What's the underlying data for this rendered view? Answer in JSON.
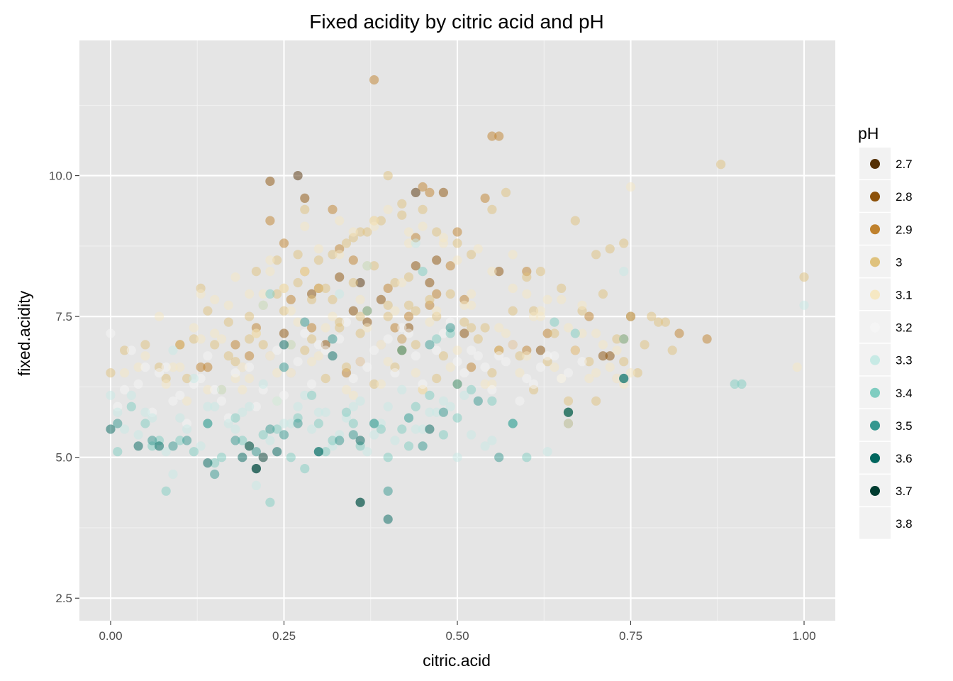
{
  "chart_data": {
    "type": "scatter",
    "title": "Fixed acidity by citric acid and pH",
    "xlabel": "citric.acid",
    "ylabel": "fixed.acidity",
    "xlim": [
      -0.045,
      1.045
    ],
    "ylim": [
      2.1,
      12.4
    ],
    "x_ticks": [
      0.0,
      0.25,
      0.5,
      0.75,
      1.0
    ],
    "x_tick_labels": [
      "0.00",
      "0.25",
      "0.50",
      "0.75",
      "1.00"
    ],
    "y_ticks": [
      2.5,
      5.0,
      7.5,
      10.0
    ],
    "y_tick_labels": [
      "2.5",
      "5.0",
      "7.5",
      "10.0"
    ],
    "grid": true,
    "legend": {
      "title": "pH",
      "position": "right",
      "entries": [
        {
          "label": "2.7",
          "color": "#543005"
        },
        {
          "label": "2.8",
          "color": "#8c510a"
        },
        {
          "label": "2.9",
          "color": "#bf812d"
        },
        {
          "label": "3",
          "color": "#dfc27d"
        },
        {
          "label": "3.1",
          "color": "#f6e8c3"
        },
        {
          "label": "3.2",
          "color": "#f5f5f5"
        },
        {
          "label": "3.3",
          "color": "#c7eae5"
        },
        {
          "label": "3.4",
          "color": "#80cdc1"
        },
        {
          "label": "3.5",
          "color": "#35978f"
        },
        {
          "label": "3.6",
          "color": "#01665e"
        },
        {
          "label": "3.7",
          "color": "#003c30"
        },
        {
          "label": "3.8",
          "color": "#e5e5e5"
        }
      ]
    },
    "point_alpha": 0.5,
    "series": [
      {
        "name": "2.7",
        "x": [
          0.27,
          0.44,
          0.36
        ],
        "y": [
          10.0,
          9.7,
          8.1
        ]
      },
      {
        "name": "2.8",
        "x": [
          0.23,
          0.28,
          0.33,
          0.46,
          0.47,
          0.48,
          0.44,
          0.39,
          0.43,
          0.35,
          0.56,
          0.62,
          0.71,
          0.75,
          0.72,
          0.66,
          0.25,
          0.31,
          0.42,
          0.29,
          0.51,
          0.37
        ],
        "y": [
          9.9,
          9.6,
          8.2,
          8.1,
          8.5,
          9.7,
          8.4,
          7.8,
          7.3,
          7.6,
          8.3,
          6.9,
          6.8,
          7.5,
          6.8,
          5.8,
          7.2,
          7.0,
          7.1,
          7.9,
          7.2,
          7.4
        ]
      },
      {
        "name": "2.9",
        "x": [
          0.23,
          0.25,
          0.32,
          0.38,
          0.44,
          0.45,
          0.46,
          0.5,
          0.54,
          0.55,
          0.56,
          0.6,
          0.63,
          0.67,
          0.69,
          0.82,
          0.86,
          0.28,
          0.3,
          0.33,
          0.35,
          0.37,
          0.4,
          0.41,
          0.43,
          0.47,
          0.49,
          0.51,
          0.26,
          0.29,
          0.18,
          0.2,
          0.13,
          0.14,
          0.1,
          0.56,
          0.58,
          0.6,
          0.66,
          0.74,
          0.21,
          0.34,
          0.42,
          0.46,
          0.52,
          0.36
        ],
        "y": [
          9.2,
          8.8,
          9.4,
          11.7,
          8.9,
          9.8,
          9.7,
          9.0,
          9.6,
          10.7,
          10.7,
          8.3,
          7.2,
          6.9,
          7.5,
          7.2,
          7.1,
          8.3,
          8.0,
          8.7,
          8.5,
          7.6,
          8.0,
          7.3,
          7.5,
          7.9,
          8.4,
          7.8,
          7.8,
          7.3,
          7.0,
          6.8,
          6.6,
          6.6,
          7.0,
          6.9,
          7.0,
          6.9,
          5.6,
          7.1,
          7.3,
          6.5,
          6.9,
          7.7,
          6.6,
          6.7
        ]
      },
      {
        "name": "3",
        "x": [
          0.0,
          0.02,
          0.05,
          0.07,
          0.1,
          0.12,
          0.15,
          0.17,
          0.2,
          0.22,
          0.25,
          0.27,
          0.3,
          0.32,
          0.35,
          0.37,
          0.4,
          0.42,
          0.45,
          0.47,
          0.5,
          0.52,
          0.55,
          0.57,
          0.6,
          0.62,
          0.65,
          0.67,
          0.7,
          0.72,
          0.74,
          0.78,
          0.8,
          0.88,
          1.0,
          0.2,
          0.24,
          0.28,
          0.31,
          0.34,
          0.38,
          0.41,
          0.43,
          0.46,
          0.49,
          0.51,
          0.54,
          0.58,
          0.61,
          0.64,
          0.68,
          0.71,
          0.73,
          0.75,
          0.77,
          0.79,
          0.81,
          0.66,
          0.7,
          0.76,
          0.18,
          0.22,
          0.26,
          0.29,
          0.33,
          0.36,
          0.39,
          0.42,
          0.44,
          0.48,
          0.53,
          0.56,
          0.59,
          0.63,
          0.21,
          0.24,
          0.27,
          0.3,
          0.32,
          0.35,
          0.37,
          0.4,
          0.43,
          0.19,
          0.23,
          0.26,
          0.28,
          0.31,
          0.34,
          0.38,
          0.41,
          0.45,
          0.47,
          0.5,
          0.55,
          0.61,
          0.73,
          0.74,
          0.69,
          0.16,
          0.13,
          0.11,
          0.08,
          0.14,
          0.17,
          0.21,
          0.25,
          0.29,
          0.33,
          0.36,
          0.4,
          0.44,
          0.47,
          0.52,
          0.38,
          0.28,
          0.36,
          0.39,
          0.42
        ],
        "y": [
          6.5,
          6.9,
          7.0,
          6.6,
          7.0,
          7.1,
          7.0,
          6.8,
          7.1,
          7.7,
          8.0,
          8.1,
          8.5,
          8.6,
          8.9,
          9.0,
          10.0,
          9.5,
          9.4,
          9.0,
          8.8,
          8.6,
          9.4,
          9.7,
          8.2,
          8.3,
          8.0,
          9.2,
          8.6,
          8.7,
          8.8,
          7.5,
          7.4,
          10.2,
          8.2,
          7.5,
          7.9,
          8.3,
          8.0,
          8.8,
          8.4,
          8.1,
          8.2,
          7.8,
          7.9,
          7.4,
          7.3,
          7.6,
          7.6,
          7.2,
          7.6,
          7.9,
          7.1,
          7.5,
          7.0,
          7.4,
          6.9,
          6.0,
          6.0,
          6.5,
          6.7,
          7.0,
          7.0,
          7.1,
          7.3,
          7.2,
          7.0,
          6.9,
          7.0,
          6.8,
          7.1,
          6.9,
          6.8,
          6.7,
          8.3,
          8.5,
          8.6,
          8.0,
          7.8,
          8.1,
          8.4,
          7.5,
          7.7,
          6.6,
          6.8,
          6.5,
          6.9,
          6.4,
          6.6,
          6.3,
          6.6,
          6.2,
          6.4,
          6.3,
          6.5,
          6.2,
          6.4,
          6.7,
          6.7,
          6.2,
          8.0,
          6.4,
          6.4,
          7.6,
          7.4,
          7.2,
          7.6,
          7.8,
          7.4,
          7.5,
          7.7,
          7.6,
          7.5,
          7.3,
          9.2,
          9.4,
          9.0,
          9.2,
          9.3
        ]
      },
      {
        "name": "3.1",
        "x": [
          0.02,
          0.05,
          0.08,
          0.1,
          0.13,
          0.15,
          0.18,
          0.2,
          0.23,
          0.25,
          0.28,
          0.3,
          0.33,
          0.35,
          0.38,
          0.4,
          0.43,
          0.45,
          0.48,
          0.5,
          0.53,
          0.55,
          0.58,
          0.6,
          0.63,
          0.65,
          0.68,
          0.7,
          0.73,
          0.75,
          0.99,
          0.07,
          0.12,
          0.16,
          0.21,
          0.26,
          0.31,
          0.36,
          0.41,
          0.46,
          0.51,
          0.56,
          0.61,
          0.66,
          0.71,
          0.19,
          0.24,
          0.29,
          0.34,
          0.39,
          0.44,
          0.49,
          0.54,
          0.59,
          0.64,
          0.69,
          0.74,
          0.17,
          0.22,
          0.27,
          0.32,
          0.37,
          0.42,
          0.47,
          0.52,
          0.57,
          0.62,
          0.67,
          0.72,
          0.11,
          0.14,
          0.09,
          0.04,
          0.2,
          0.3,
          0.4,
          0.5,
          0.6,
          0.7,
          0.33,
          0.38,
          0.43,
          0.48,
          0.28,
          0.23,
          0.18,
          0.13,
          0.15,
          0.24,
          0.35,
          0.45,
          0.55,
          0.65,
          0.75,
          0.42,
          0.52,
          0.58,
          0.62,
          0.68
        ],
        "y": [
          6.5,
          6.8,
          6.3,
          6.6,
          7.1,
          7.2,
          6.4,
          7.9,
          8.3,
          8.0,
          9.1,
          8.7,
          8.6,
          9.0,
          9.2,
          9.4,
          9.0,
          9.1,
          8.8,
          8.5,
          8.7,
          8.3,
          8.6,
          7.9,
          7.8,
          7.8,
          7.7,
          7.2,
          6.9,
          9.8,
          6.6,
          7.5,
          7.3,
          7.1,
          7.2,
          7.6,
          7.3,
          7.8,
          7.6,
          7.4,
          7.7,
          7.3,
          7.5,
          7.3,
          7.0,
          6.2,
          6.5,
          6.7,
          6.2,
          6.3,
          6.5,
          6.6,
          6.3,
          6.5,
          6.6,
          6.4,
          6.3,
          7.7,
          7.9,
          7.4,
          7.5,
          7.3,
          7.1,
          7.6,
          7.7,
          7.2,
          7.5,
          6.9,
          6.6,
          6.0,
          6.2,
          6.6,
          6.6,
          6.4,
          6.8,
          6.7,
          6.9,
          6.8,
          6.5,
          9.2,
          9.1,
          8.8,
          8.9,
          8.3,
          8.5,
          8.2,
          7.9,
          7.8,
          6.0,
          6.1,
          6.2,
          6.3,
          6.4,
          6.5,
          8.1,
          7.9,
          8.0,
          7.6,
          7.2
        ]
      },
      {
        "name": "3.2",
        "x": [
          0.0,
          0.02,
          0.03,
          0.05,
          0.06,
          0.08,
          0.1,
          0.12,
          0.14,
          0.16,
          0.18,
          0.2,
          0.22,
          0.24,
          0.26,
          0.28,
          0.3,
          0.32,
          0.34,
          0.36,
          0.38,
          0.4,
          0.42,
          0.44,
          0.46,
          0.48,
          0.5,
          0.52,
          0.54,
          0.56,
          0.58,
          0.6,
          0.62,
          0.64,
          0.66,
          0.68,
          0.73,
          0.01,
          0.04,
          0.07,
          0.09,
          0.11,
          0.13,
          0.15,
          0.17,
          0.19,
          0.21,
          0.23,
          0.25,
          0.27,
          0.29,
          0.31,
          0.33,
          0.35,
          0.37,
          0.39,
          0.41,
          0.43,
          0.45,
          0.47,
          0.49,
          0.51,
          0.53,
          0.55,
          0.57,
          0.59,
          0.61,
          0.63,
          0.65
        ],
        "y": [
          7.2,
          6.2,
          6.9,
          6.6,
          5.8,
          6.6,
          6.1,
          6.3,
          6.8,
          6.0,
          6.5,
          6.6,
          6.2,
          6.9,
          6.5,
          7.2,
          7.0,
          6.8,
          7.4,
          6.7,
          6.9,
          7.1,
          7.3,
          6.8,
          7.0,
          7.2,
          6.7,
          6.9,
          6.6,
          6.8,
          7.0,
          6.4,
          6.6,
          6.8,
          6.5,
          6.7,
          6.4,
          5.9,
          6.3,
          6.5,
          6.0,
          5.6,
          6.4,
          6.2,
          5.7,
          6.6,
          5.9,
          6.8,
          6.1,
          6.7,
          6.3,
          6.9,
          7.1,
          6.4,
          6.6,
          7.0,
          6.5,
          7.2,
          6.3,
          6.9,
          7.4,
          6.5,
          6.8,
          6.2,
          6.7,
          6.0,
          6.3,
          6.8,
          6.4
        ]
      },
      {
        "name": "3.3",
        "x": [
          0.0,
          0.01,
          0.02,
          0.04,
          0.06,
          0.08,
          0.09,
          0.11,
          0.13,
          0.15,
          0.17,
          0.19,
          0.21,
          0.23,
          0.25,
          0.27,
          0.29,
          0.31,
          0.33,
          0.35,
          0.37,
          0.39,
          0.41,
          0.43,
          0.45,
          0.47,
          0.49,
          0.51,
          0.55,
          0.58,
          0.63,
          0.66,
          0.74,
          1.0,
          0.03,
          0.05,
          0.07,
          0.1,
          0.12,
          0.14,
          0.16,
          0.18,
          0.2,
          0.22,
          0.24,
          0.26,
          0.28,
          0.3,
          0.32,
          0.34,
          0.36,
          0.38,
          0.4,
          0.42,
          0.44,
          0.46,
          0.48,
          0.5,
          0.52,
          0.54,
          0.22,
          0.09,
          0.44,
          0.37,
          0.33,
          0.26
        ],
        "y": [
          6.1,
          5.8,
          5.5,
          5.4,
          5.7,
          5.1,
          4.7,
          5.5,
          5.2,
          5.9,
          5.6,
          5.8,
          4.5,
          5.3,
          5.6,
          5.9,
          5.5,
          5.8,
          5.4,
          5.9,
          5.1,
          5.6,
          5.3,
          5.7,
          5.5,
          5.8,
          5.9,
          6.1,
          5.3,
          5.6,
          5.1,
          5.6,
          8.3,
          7.7,
          6.1,
          5.8,
          5.2,
          5.7,
          6.4,
          5.9,
          6.2,
          5.5,
          5.9,
          6.3,
          6.0,
          5.6,
          6.1,
          5.8,
          5.2,
          5.7,
          6.0,
          5.4,
          5.9,
          6.2,
          5.5,
          5.8,
          6.0,
          5.0,
          5.4,
          5.2,
          7.7,
          6.9,
          8.8,
          8.4,
          7.9,
          7.0
        ]
      },
      {
        "name": "3.4",
        "x": [
          0.01,
          0.03,
          0.05,
          0.07,
          0.08,
          0.1,
          0.12,
          0.14,
          0.16,
          0.18,
          0.2,
          0.22,
          0.24,
          0.26,
          0.28,
          0.3,
          0.32,
          0.34,
          0.36,
          0.38,
          0.4,
          0.42,
          0.44,
          0.46,
          0.48,
          0.5,
          0.52,
          0.55,
          0.58,
          0.6,
          0.64,
          0.67,
          0.74,
          0.9,
          0.91,
          0.06,
          0.15,
          0.19,
          0.23,
          0.27,
          0.31,
          0.35,
          0.39,
          0.43,
          0.47,
          0.45,
          0.49,
          0.37,
          0.23,
          0.29
        ],
        "y": [
          5.1,
          5.9,
          5.6,
          5.3,
          4.4,
          5.3,
          5.1,
          5.6,
          5.0,
          5.7,
          5.2,
          5.4,
          5.5,
          5.0,
          4.8,
          5.6,
          5.3,
          5.8,
          5.2,
          5.6,
          5.0,
          5.5,
          5.9,
          6.1,
          5.4,
          5.7,
          6.2,
          6.0,
          5.6,
          5.0,
          7.4,
          7.2,
          7.1,
          6.3,
          6.3,
          5.2,
          4.9,
          5.3,
          4.2,
          5.7,
          5.1,
          5.6,
          5.5,
          5.2,
          7.1,
          8.3,
          7.2,
          7.6,
          7.9,
          6.1
        ]
      },
      {
        "name": "3.5",
        "x": [
          0.01,
          0.06,
          0.09,
          0.11,
          0.14,
          0.15,
          0.18,
          0.21,
          0.23,
          0.25,
          0.27,
          0.3,
          0.33,
          0.35,
          0.38,
          0.4,
          0.43,
          0.45,
          0.48,
          0.5,
          0.53,
          0.56,
          0.58,
          0.66,
          0.74,
          0.28,
          0.32,
          0.42,
          0.46,
          0.49,
          0.36,
          0.25
        ],
        "y": [
          5.6,
          5.3,
          5.2,
          5.3,
          5.6,
          4.7,
          5.3,
          5.1,
          5.5,
          5.4,
          5.6,
          5.1,
          5.3,
          5.4,
          5.6,
          4.4,
          5.7,
          5.2,
          5.8,
          6.3,
          6.0,
          5.0,
          5.6,
          5.8,
          6.4,
          7.4,
          7.1,
          6.9,
          7.0,
          7.3,
          4.2,
          6.6
        ]
      },
      {
        "name": "3.6",
        "x": [
          0.0,
          0.04,
          0.07,
          0.14,
          0.19,
          0.21,
          0.24,
          0.3,
          0.36,
          0.4,
          0.46,
          0.66,
          0.74,
          0.25,
          0.32
        ],
        "y": [
          5.5,
          5.2,
          5.2,
          4.9,
          5.0,
          4.8,
          5.1,
          5.1,
          5.3,
          3.9,
          5.5,
          5.8,
          6.4,
          7.0,
          6.8
        ]
      },
      {
        "name": "3.7",
        "x": [
          0.21,
          0.22,
          0.2,
          0.36
        ],
        "y": [
          4.8,
          5.0,
          5.2,
          4.2
        ]
      },
      {
        "name": "3.8",
        "x": [],
        "y": []
      }
    ]
  }
}
